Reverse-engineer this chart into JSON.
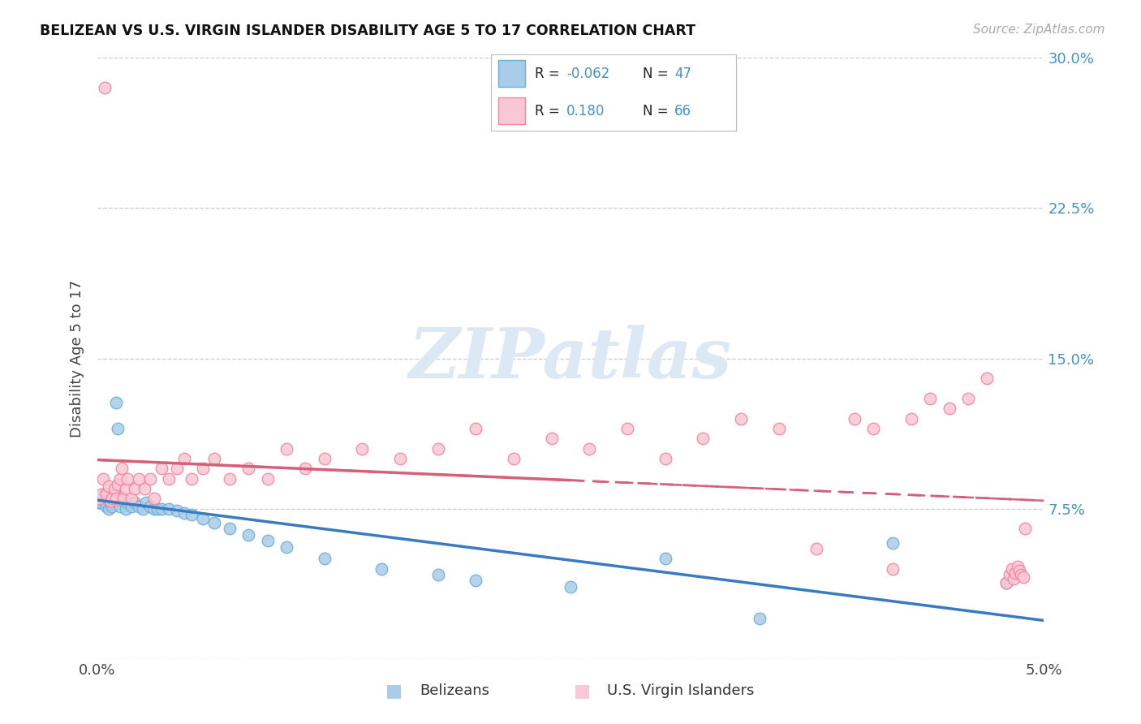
{
  "title": "BELIZEAN VS U.S. VIRGIN ISLANDER DISABILITY AGE 5 TO 17 CORRELATION CHART",
  "source": "Source: ZipAtlas.com",
  "ylabel": "Disability Age 5 to 17",
  "xlabel_belizean": "Belizeans",
  "xlabel_virgin": "U.S. Virgin Islanders",
  "xmin": 0.0,
  "xmax": 0.05,
  "ymin": 0.0,
  "ymax": 0.3,
  "yticks": [
    0.0,
    0.075,
    0.15,
    0.225,
    0.3
  ],
  "ytick_labels": [
    "",
    "7.5%",
    "15.0%",
    "22.5%",
    "30.0%"
  ],
  "color_blue": "#aacce8",
  "color_blue_edge": "#6baed6",
  "color_pink": "#f9c8d4",
  "color_pink_edge": "#f4829a",
  "color_line_blue": "#3a7bbf",
  "color_line_pink": "#d4607a",
  "color_grid": "#cccccc",
  "color_ytick": "#4393c3",
  "watermark_color": "#dde8f5",
  "watermark": "ZIPatlas",
  "R1": "-0.062",
  "N1": "47",
  "R2": "0.180",
  "N2": "66",
  "belizean_x": [
    0.0001,
    0.00015,
    0.0002,
    0.00025,
    0.0003,
    0.00035,
    0.0004,
    0.0005,
    0.0006,
    0.0007,
    0.0008,
    0.0009,
    0.001,
    0.0011,
    0.0012,
    0.0013,
    0.0014,
    0.0015,
    0.0016,
    0.0018,
    0.002,
    0.0022,
    0.0024,
    0.0026,
    0.0028,
    0.003,
    0.0032,
    0.0034,
    0.0038,
    0.0042,
    0.0046,
    0.005,
    0.0056,
    0.0062,
    0.007,
    0.008,
    0.009,
    0.01,
    0.012,
    0.015,
    0.018,
    0.02,
    0.025,
    0.03,
    0.035,
    0.042,
    0.048
  ],
  "belizean_y": [
    0.078,
    0.079,
    0.078,
    0.081,
    0.08,
    0.082,
    0.079,
    0.076,
    0.075,
    0.078,
    0.076,
    0.08,
    0.128,
    0.115,
    0.076,
    0.081,
    0.079,
    0.075,
    0.078,
    0.076,
    0.078,
    0.076,
    0.075,
    0.078,
    0.076,
    0.075,
    0.075,
    0.075,
    0.075,
    0.074,
    0.073,
    0.072,
    0.07,
    0.068,
    0.065,
    0.062,
    0.059,
    0.056,
    0.05,
    0.045,
    0.042,
    0.039,
    0.036,
    0.05,
    0.02,
    0.058,
    0.038
  ],
  "virgin_x": [
    0.0001,
    0.0002,
    0.0003,
    0.0004,
    0.0005,
    0.0006,
    0.0007,
    0.0008,
    0.0009,
    0.001,
    0.0011,
    0.0012,
    0.0013,
    0.0014,
    0.0015,
    0.0016,
    0.0018,
    0.002,
    0.0022,
    0.0025,
    0.0028,
    0.003,
    0.0034,
    0.0038,
    0.0042,
    0.0046,
    0.005,
    0.0056,
    0.0062,
    0.007,
    0.008,
    0.009,
    0.01,
    0.011,
    0.012,
    0.014,
    0.016,
    0.018,
    0.02,
    0.022,
    0.024,
    0.026,
    0.028,
    0.03,
    0.032,
    0.034,
    0.036,
    0.038,
    0.04,
    0.041,
    0.042,
    0.043,
    0.044,
    0.045,
    0.046,
    0.047,
    0.048,
    0.0482,
    0.0483,
    0.0484,
    0.0485,
    0.0486,
    0.0487,
    0.0488,
    0.0489,
    0.049
  ],
  "virgin_y": [
    0.08,
    0.082,
    0.09,
    0.285,
    0.082,
    0.086,
    0.079,
    0.08,
    0.085,
    0.08,
    0.087,
    0.09,
    0.095,
    0.08,
    0.085,
    0.09,
    0.08,
    0.085,
    0.09,
    0.085,
    0.09,
    0.08,
    0.095,
    0.09,
    0.095,
    0.1,
    0.09,
    0.095,
    0.1,
    0.09,
    0.095,
    0.09,
    0.105,
    0.095,
    0.1,
    0.105,
    0.1,
    0.105,
    0.115,
    0.1,
    0.11,
    0.105,
    0.115,
    0.1,
    0.11,
    0.12,
    0.115,
    0.055,
    0.12,
    0.115,
    0.045,
    0.12,
    0.13,
    0.125,
    0.13,
    0.14,
    0.038,
    0.042,
    0.045,
    0.04,
    0.043,
    0.046,
    0.044,
    0.042,
    0.041,
    0.065
  ]
}
